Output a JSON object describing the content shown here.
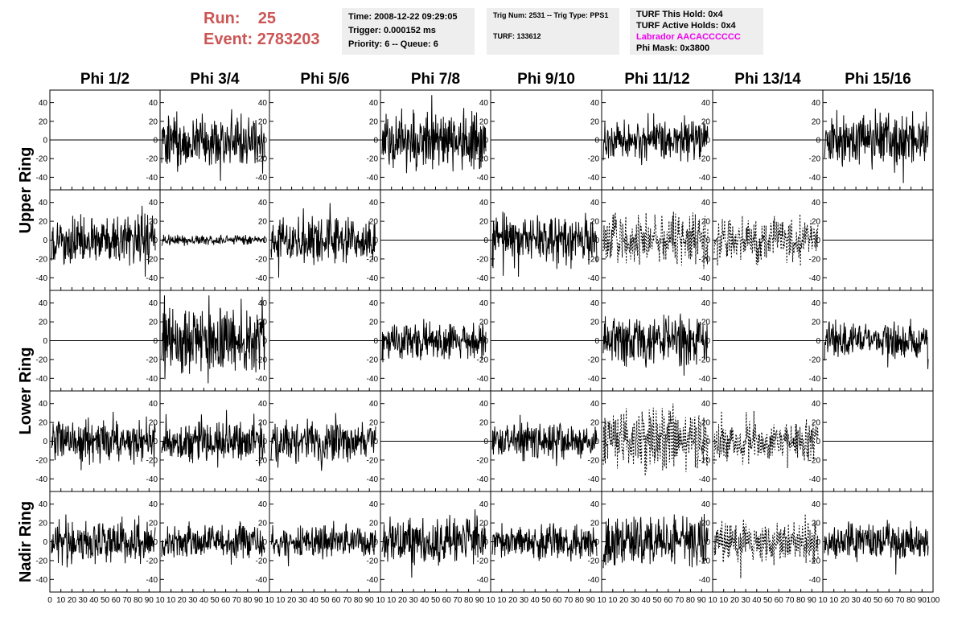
{
  "header": {
    "run_label": "Run:",
    "run_value": "25",
    "event_label": "Event:",
    "event_value": "2783203"
  },
  "box1": {
    "time": "Time: 2008-12-22 09:29:05",
    "trigger": "Trigger: 0.000152 ms",
    "priority": "Priority: 6 -- Queue: 6"
  },
  "box2": {
    "trig": "Trig Num: 2531 -- Trig Type: PPS1",
    "turf": "TURF: 133612"
  },
  "box3": {
    "this_hold": "TURF This Hold: 0x4",
    "active_holds": "TURF Active Holds: 0x4",
    "labrador": "Labrador AACACCCCCC",
    "phi_mask": "Phi Mask: 0x3800"
  },
  "colors": {
    "header_red": "#cc5555",
    "labrador": "#ee00ee",
    "trace": "#000000",
    "box_bg": "#eeeeee"
  },
  "chart_data": {
    "type": "line",
    "columns": [
      "Phi 1/2",
      "Phi 3/4",
      "Phi 5/6",
      "Phi 7/8",
      "Phi 9/10",
      "Phi 11/12",
      "Phi 13/14",
      "Phi 15/16"
    ],
    "ring_labels": [
      "Upper Ring",
      "Lower Ring",
      "Nadir Ring"
    ],
    "ylim": [
      -50,
      50
    ],
    "xlim": [
      0,
      100
    ],
    "y_ticks": [
      -40,
      -20,
      0,
      20,
      40
    ],
    "x_ticks": [
      0,
      10,
      20,
      30,
      40,
      50,
      60,
      70,
      80,
      90,
      100
    ],
    "x_tick_label_strings": [
      "0",
      "10",
      "20",
      "30",
      "40",
      "50",
      "60",
      "70",
      "80",
      "90",
      "10",
      "10",
      "20",
      "30",
      "40",
      "50",
      "60",
      "70",
      "80",
      "90",
      "10",
      "10",
      "20",
      "30",
      "40",
      "50",
      "60",
      "70",
      "80",
      "90",
      "10",
      "10",
      "20",
      "30",
      "40",
      "50",
      "60",
      "70",
      "80",
      "90",
      "10",
      "10",
      "20",
      "30",
      "40",
      "50",
      "60",
      "70",
      "80",
      "90",
      "10",
      "10",
      "20",
      "30",
      "40",
      "50",
      "60",
      "70",
      "80",
      "90",
      "10",
      "10",
      "20",
      "30",
      "40",
      "50",
      "60",
      "70",
      "80",
      "90",
      "10",
      "10",
      "20",
      "30",
      "40",
      "50",
      "60",
      "70",
      "80",
      "90",
      "100"
    ],
    "channels": [
      [
        "flat",
        "noise",
        "flat",
        "noise",
        "flat",
        "noise",
        "flat",
        "noise"
      ],
      [
        "noise",
        "small",
        "noise",
        "flat",
        "noise",
        "dashed",
        "dashed",
        "flat"
      ],
      [
        "flat",
        "noise",
        "flat",
        "noise",
        "flat",
        "noise",
        "flat",
        "noise"
      ],
      [
        "noise",
        "noise",
        "noise",
        "flat",
        "noise",
        "dashed",
        "dashed",
        "flat"
      ],
      [
        "noise",
        "noise",
        "noise",
        "noise",
        "noise",
        "noise",
        "dashed",
        "noise"
      ]
    ],
    "amplitudes": [
      [
        0,
        32,
        0,
        38,
        0,
        24,
        0,
        36
      ],
      [
        30,
        6,
        28,
        0,
        32,
        32,
        28,
        0
      ],
      [
        0,
        40,
        0,
        24,
        0,
        30,
        0,
        22
      ],
      [
        28,
        24,
        26,
        0,
        22,
        38,
        26,
        0
      ],
      [
        26,
        22,
        20,
        30,
        22,
        32,
        26,
        24
      ]
    ]
  }
}
